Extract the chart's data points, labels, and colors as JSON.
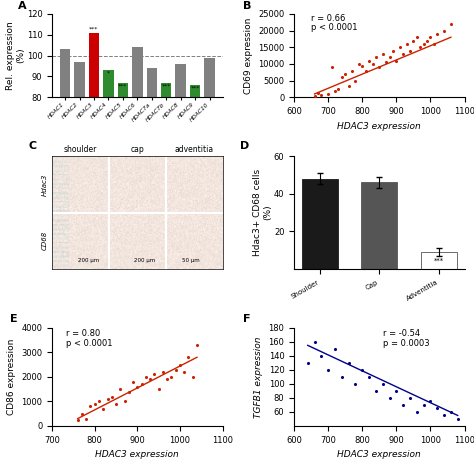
{
  "panel_A": {
    "categories": [
      "HDAC1",
      "HDAC2",
      "HDAC3",
      "HDAC4",
      "HDAC5",
      "HDAC6",
      "HDAC7a",
      "HDAC7b",
      "HDAC8",
      "HDAC9",
      "HDAC10"
    ],
    "values": [
      103,
      97,
      111,
      93,
      87,
      104,
      94,
      87,
      96,
      86,
      99
    ],
    "colors": [
      "#808080",
      "#808080",
      "#cc0000",
      "#2e8b2e",
      "#2e8b2e",
      "#808080",
      "#808080",
      "#2e8b2e",
      "#808080",
      "#2e8b2e",
      "#808080"
    ],
    "stars": [
      "",
      "",
      "***",
      "*",
      "***",
      "",
      "",
      "***",
      "",
      "***",
      ""
    ],
    "ylim": [
      80,
      120
    ],
    "yticks": [
      80,
      90,
      100,
      110,
      120
    ],
    "ylabel": "Rel. expression\n(%)",
    "dashed_line": 100
  },
  "panel_B": {
    "xlabel": "HDAC3 expression",
    "ylabel": "CD69 expression",
    "xlim": [
      600,
      1100
    ],
    "ylim": [
      0,
      25000
    ],
    "xticks": [
      600,
      700,
      800,
      900,
      1000,
      1100
    ],
    "yticks": [
      0,
      5000,
      10000,
      15000,
      20000,
      25000
    ],
    "r": "r = 0.66",
    "p": "p < 0.0001",
    "scatter_x": [
      660,
      670,
      680,
      700,
      710,
      720,
      730,
      740,
      750,
      760,
      770,
      780,
      790,
      800,
      810,
      820,
      830,
      840,
      850,
      860,
      870,
      880,
      890,
      900,
      910,
      920,
      930,
      940,
      950,
      960,
      970,
      980,
      990,
      1000,
      1010,
      1020,
      1040,
      1060
    ],
    "scatter_y": [
      400,
      1200,
      800,
      1000,
      9000,
      2000,
      2500,
      6000,
      7000,
      3500,
      8000,
      5000,
      10000,
      9500,
      8000,
      11000,
      10000,
      12000,
      9000,
      13000,
      10500,
      12000,
      14000,
      11000,
      15000,
      13000,
      16000,
      14000,
      17000,
      18000,
      15000,
      16000,
      17000,
      18000,
      16000,
      19000,
      20000,
      22000
    ],
    "line_x": [
      660,
      1060
    ],
    "line_y": [
      1000,
      18000
    ],
    "color": "#cc2200"
  },
  "panel_D": {
    "categories": [
      "Shoulder",
      "Cap",
      "Adventitia"
    ],
    "values": [
      48,
      46,
      9
    ],
    "errors": [
      3,
      3,
      2
    ],
    "colors": [
      "#1a1a1a",
      "#555555",
      "#ffffff"
    ],
    "edge_colors": [
      "#1a1a1a",
      "#555555",
      "#555555"
    ],
    "ylabel": "Hdac3+ CD68 cells\n(%)",
    "ylim": [
      0,
      60
    ],
    "yticks": [
      20,
      40,
      60
    ],
    "stars": [
      "",
      "",
      "***"
    ]
  },
  "panel_E": {
    "xlabel": "HDAC3 expression",
    "ylabel": "CD86 expression",
    "xlim": [
      700,
      1100
    ],
    "ylim": [
      0,
      4000
    ],
    "xticks": [
      700,
      800,
      900,
      1000,
      1100
    ],
    "yticks": [
      0,
      1000,
      2000,
      3000,
      4000
    ],
    "r": "r = 0.80",
    "p": "p < 0.0001",
    "scatter_x": [
      760,
      770,
      780,
      790,
      800,
      810,
      820,
      830,
      840,
      850,
      860,
      870,
      880,
      890,
      900,
      910,
      920,
      930,
      940,
      950,
      960,
      970,
      980,
      990,
      1000,
      1010,
      1020,
      1030,
      1040
    ],
    "scatter_y": [
      250,
      500,
      300,
      800,
      900,
      1000,
      700,
      1100,
      1200,
      900,
      1500,
      1000,
      1400,
      1800,
      1600,
      1700,
      2000,
      1900,
      2100,
      1500,
      2200,
      1900,
      2000,
      2300,
      2500,
      2200,
      2800,
      2000,
      3300
    ],
    "line_x": [
      760,
      1040
    ],
    "line_y": [
      300,
      2800
    ],
    "color": "#cc2200"
  },
  "panel_F": {
    "xlabel": "HDAC3 expression",
    "ylabel": "TGFB1 expression",
    "xlim": [
      600,
      1100
    ],
    "ylim": [
      40,
      180
    ],
    "xticks": [
      600,
      700,
      800,
      900,
      1000,
      1100
    ],
    "yticks": [
      60,
      80,
      100,
      120,
      140,
      160,
      180
    ],
    "r": "r = -0.54",
    "p": "p = 0.0003",
    "scatter_x": [
      640,
      660,
      680,
      700,
      720,
      740,
      760,
      780,
      800,
      820,
      840,
      860,
      880,
      900,
      920,
      940,
      960,
      980,
      1000,
      1020,
      1040,
      1060,
      1080
    ],
    "scatter_y": [
      130,
      160,
      140,
      120,
      150,
      110,
      130,
      100,
      120,
      110,
      90,
      100,
      80,
      90,
      70,
      80,
      60,
      70,
      75,
      65,
      55,
      60,
      50
    ],
    "line_x": [
      640,
      1080
    ],
    "line_y": [
      155,
      55
    ],
    "color": "#00008b"
  },
  "tick_fontsize": 6.0,
  "label_fontsize": 6.5
}
